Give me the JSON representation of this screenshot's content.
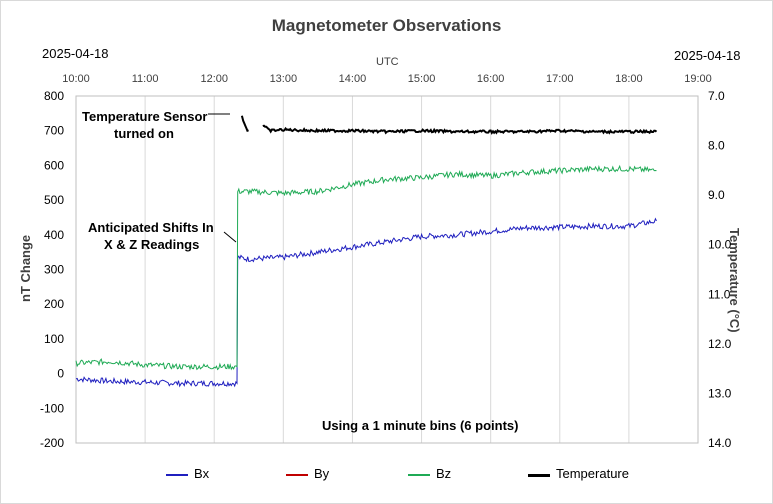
{
  "chart_data": {
    "type": "line",
    "title": "Magnetometer Observations",
    "top_left_date": "2025-04-18",
    "top_right_date": "2025-04-18",
    "x_axis_label": "UTC",
    "x_ticks": [
      "10:00",
      "11:00",
      "12:00",
      "13:00",
      "14:00",
      "15:00",
      "16:00",
      "17:00",
      "18:00",
      "19:00"
    ],
    "xlim_hours": [
      10,
      19
    ],
    "y_left_label": "nT Change",
    "y_left_ticks": [
      "800",
      "700",
      "600",
      "500",
      "400",
      "300",
      "200",
      "100",
      "0",
      "-100",
      "-200"
    ],
    "ylim_left": [
      -200,
      800
    ],
    "y_right_label": "Temperature (°C)",
    "y_right_ticks": [
      "7.0",
      "8.0",
      "9.0",
      "10.0",
      "11.0",
      "12.0",
      "13.0",
      "14.0"
    ],
    "ylim_right": [
      7.0,
      14.0
    ],
    "y_right_inverted": true,
    "grid": "vertical-only",
    "series": [
      {
        "name": "Bx",
        "color": "#1f1fbf",
        "x": [
          10.0,
          10.5,
          11.0,
          11.5,
          12.0,
          12.33,
          12.34,
          12.5,
          13.0,
          13.5,
          14.0,
          14.5,
          15.0,
          15.5,
          16.0,
          16.5,
          17.0,
          17.5,
          18.0,
          18.4
        ],
        "y": [
          -15,
          -22,
          -25,
          -28,
          -28,
          -28,
          335,
          330,
          335,
          350,
          365,
          380,
          395,
          400,
          410,
          420,
          422,
          425,
          425,
          440
        ]
      },
      {
        "name": "By",
        "color": "#c00000",
        "x": [],
        "y": []
      },
      {
        "name": "Bz",
        "color": "#1faa55",
        "x": [
          10.0,
          10.5,
          11.0,
          11.5,
          12.0,
          12.33,
          12.34,
          12.5,
          13.0,
          13.5,
          14.0,
          14.5,
          15.0,
          15.5,
          16.0,
          16.5,
          17.0,
          17.5,
          18.0,
          18.4
        ],
        "y": [
          30,
          35,
          25,
          20,
          20,
          20,
          525,
          525,
          520,
          525,
          545,
          560,
          565,
          575,
          570,
          580,
          585,
          590,
          590,
          585
        ],
        "axis": "left"
      },
      {
        "name": "Temperature",
        "color": "#000000",
        "axis": "right",
        "x": [
          12.4,
          12.42,
          12.45,
          12.48,
          12.72,
          12.8,
          13.0,
          13.5,
          14.0,
          14.5,
          15.0,
          15.5,
          16.0,
          16.5,
          17.0,
          17.5,
          18.0,
          18.4
        ],
        "y": [
          7.4,
          7.5,
          7.6,
          7.7,
          7.6,
          7.7,
          7.68,
          7.7,
          7.7,
          7.72,
          7.7,
          7.72,
          7.72,
          7.72,
          7.7,
          7.72,
          7.72,
          7.72
        ]
      }
    ],
    "annotations": [
      {
        "text_lines": [
          "Temperature Sensor",
          "turned on"
        ]
      },
      {
        "text_lines": [
          "Anticipated Shifts In",
          "X & Z Readings"
        ]
      },
      {
        "text_lines": [
          "Using a 1 minute bins (6 points)"
        ]
      }
    ]
  }
}
